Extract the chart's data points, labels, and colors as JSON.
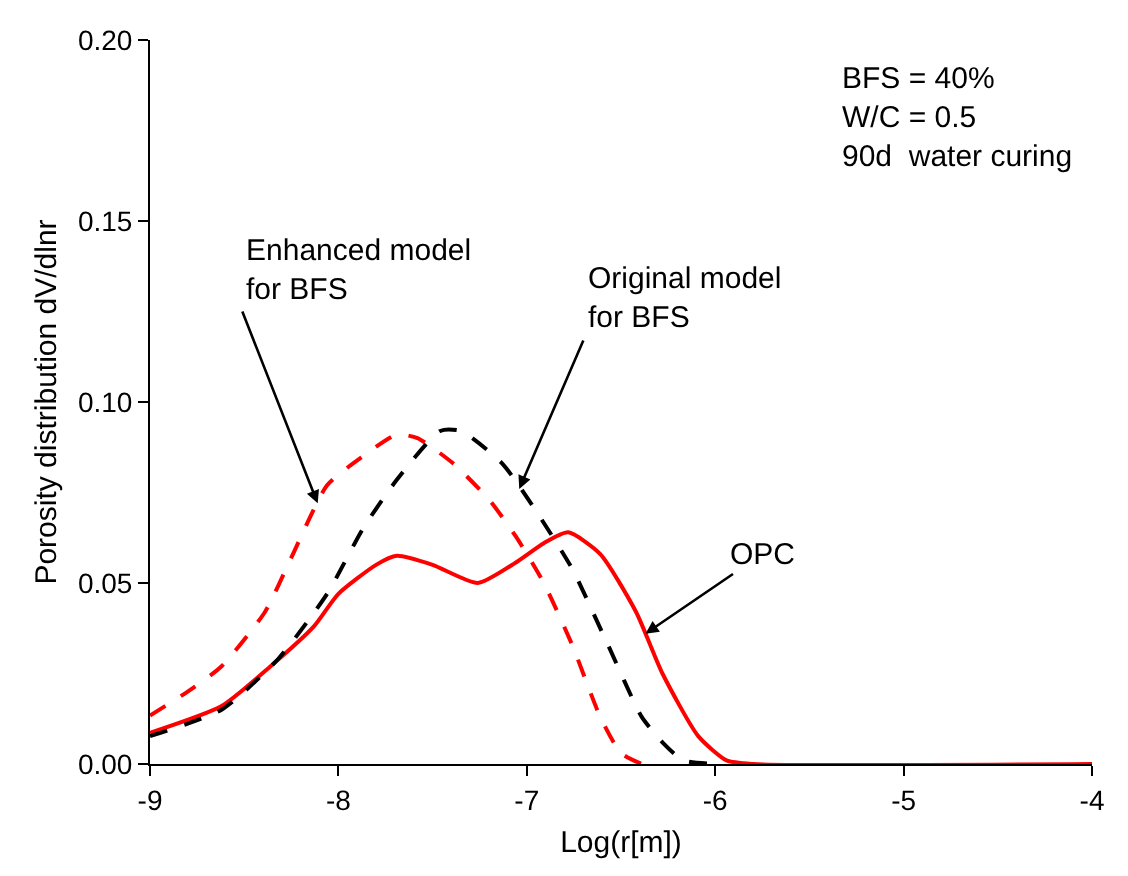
{
  "chart_data": {
    "type": "line",
    "xlabel": "Log(r[m])",
    "ylabel": "Porosity distribution dV/dlnr",
    "xlim": [
      -9,
      -4
    ],
    "xticks": [
      -9,
      -8,
      -7,
      -6,
      -5,
      -4
    ],
    "ylim": [
      0,
      0.2
    ],
    "yticks": [
      {
        "value": 0,
        "label": "0.00"
      },
      {
        "value": 0.05,
        "label": "0.05"
      },
      {
        "value": 0.1,
        "label": "0.10"
      },
      {
        "value": 0.15,
        "label": "0.15"
      },
      {
        "value": 0.2,
        "label": "0.20"
      }
    ],
    "series": [
      {
        "color": "#ff0000",
        "line_style": "solid",
        "x": [
          -9,
          -8.62,
          -8.36,
          -8.13,
          -8,
          -7.8,
          -7.69,
          -7.5,
          -7.26,
          -7.06,
          -6.91,
          -6.78,
          -6.61,
          -6.42,
          -6.28,
          -6.09,
          -5.94,
          -5.8,
          -4
        ],
        "values": [
          0.0086,
          0.016,
          0.027,
          0.038,
          0.047,
          0.055,
          0.0575,
          0.055,
          0.05,
          0.0556,
          0.061,
          0.064,
          0.058,
          0.042,
          0.025,
          0.0077,
          0.001,
          0,
          0
        ]
      },
      {
        "color": "#000000",
        "line_style": "dashed",
        "x": [
          -9,
          -8.62,
          -8.32,
          -8.06,
          -7.87,
          -7.69,
          -7.46,
          -7.35,
          -7.13,
          -6.94,
          -6.76,
          -6.57,
          -6.39,
          -6.28,
          -6.17,
          -6.0
        ],
        "values": [
          0.0077,
          0.015,
          0.029,
          0.047,
          0.065,
          0.0785,
          0.092,
          0.092,
          0.083,
          0.069,
          0.054,
          0.033,
          0.013,
          0.006,
          0.001,
          0
        ]
      },
      {
        "color": "#ff0000",
        "line_style": "dashed",
        "x": [
          -9,
          -8.8,
          -8.62,
          -8.39,
          -8.25,
          -8.06,
          -7.87,
          -7.69,
          -7.58,
          -7.39,
          -7.2,
          -7.06,
          -6.91,
          -6.76,
          -6.61,
          -6.5,
          -6.39
        ],
        "values": [
          0.0134,
          0.02,
          0.027,
          0.042,
          0.057,
          0.077,
          0.085,
          0.091,
          0.09,
          0.083,
          0.073,
          0.063,
          0.05,
          0.033,
          0.013,
          0.003,
          0
        ]
      }
    ],
    "annotations": [
      {
        "text": "Enhanced model\nfor BFS",
        "x": -8.11,
        "y": 0.072
      },
      {
        "text": "Original model\nfor BFS",
        "x": -7.04,
        "y": 0.076
      },
      {
        "text": "OPC",
        "x": -6.37,
        "y": 0.036
      },
      "BFS = 40%\nW/C = 0.5\n90d  water curing"
    ]
  }
}
